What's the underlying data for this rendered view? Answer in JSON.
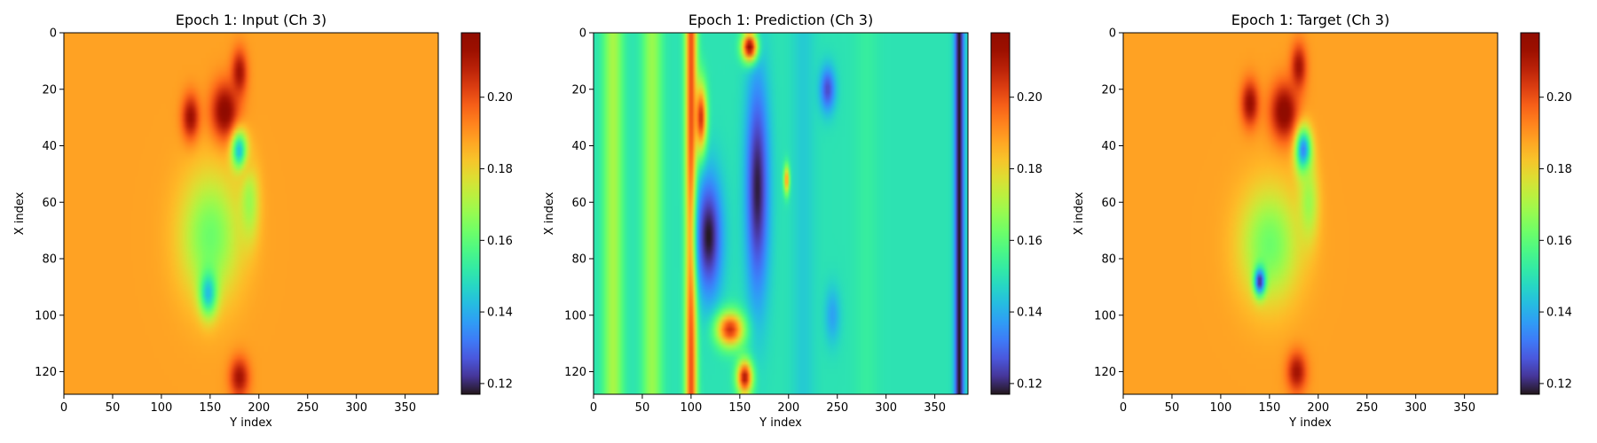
{
  "chart_data": [
    {
      "type": "heatmap",
      "title": "Epoch 1: Input (Ch 3)",
      "xlabel": "Y index",
      "ylabel": "X index",
      "xlim": [
        0,
        384
      ],
      "ylim": [
        128,
        0
      ],
      "xticks": [
        0,
        50,
        100,
        150,
        200,
        250,
        300,
        350
      ],
      "yticks": [
        0,
        20,
        40,
        60,
        80,
        100,
        120
      ],
      "colorbar": {
        "min": 0.117,
        "max": 0.218,
        "ticks": [
          0.12,
          0.14,
          0.16,
          0.18,
          0.2
        ],
        "tick_labels": [
          "0.12",
          "0.14",
          "0.16",
          "0.18",
          "0.20"
        ],
        "colormap": "turbo"
      },
      "background_value": 0.188,
      "features": [
        {
          "x": 165,
          "y": 28,
          "sx": 14,
          "sy": 10,
          "v": 0.218
        },
        {
          "x": 130,
          "y": 30,
          "sx": 9,
          "sy": 8,
          "v": 0.214
        },
        {
          "x": 180,
          "y": 14,
          "sx": 8,
          "sy": 8,
          "v": 0.212
        },
        {
          "x": 185,
          "y": 48,
          "sx": 8,
          "sy": 6,
          "v": 0.205
        },
        {
          "x": 180,
          "y": 122,
          "sx": 10,
          "sy": 7,
          "v": 0.212
        },
        {
          "x": 180,
          "y": 42,
          "sx": 8,
          "sy": 7,
          "v": 0.14
        },
        {
          "x": 150,
          "y": 72,
          "sx": 30,
          "sy": 22,
          "v": 0.162
        },
        {
          "x": 148,
          "y": 92,
          "sx": 9,
          "sy": 8,
          "v": 0.142
        },
        {
          "x": 190,
          "y": 60,
          "sx": 10,
          "sy": 14,
          "v": 0.168
        }
      ]
    },
    {
      "type": "heatmap",
      "title": "Epoch 1: Prediction (Ch 3)",
      "xlabel": "Y index",
      "ylabel": "X index",
      "xlim": [
        0,
        384
      ],
      "ylim": [
        128,
        0
      ],
      "xticks": [
        0,
        50,
        100,
        150,
        200,
        250,
        300,
        350
      ],
      "yticks": [
        0,
        20,
        40,
        60,
        80,
        100,
        120
      ],
      "colorbar": {
        "min": 0.117,
        "max": 0.218,
        "ticks": [
          0.12,
          0.14,
          0.16,
          0.18,
          0.2
        ],
        "tick_labels": [
          "0.12",
          "0.14",
          "0.16",
          "0.18",
          "0.20"
        ],
        "colormap": "turbo"
      },
      "background_value": 0.15,
      "stripes": [
        {
          "x": 20,
          "w": 10,
          "v": 0.17
        },
        {
          "x": 60,
          "w": 10,
          "v": 0.168
        },
        {
          "x": 100,
          "w": 6,
          "v": 0.2
        },
        {
          "x": 215,
          "w": 12,
          "v": 0.145
        },
        {
          "x": 280,
          "w": 12,
          "v": 0.153
        },
        {
          "x": 330,
          "w": 14,
          "v": 0.15
        },
        {
          "x": 375,
          "w": 5,
          "v": 0.117
        }
      ],
      "features": [
        {
          "x": 118,
          "y": 72,
          "sx": 14,
          "sy": 22,
          "v": 0.117
        },
        {
          "x": 168,
          "y": 55,
          "sx": 12,
          "sy": 40,
          "v": 0.118
        },
        {
          "x": 160,
          "y": 5,
          "sx": 8,
          "sy": 5,
          "v": 0.215
        },
        {
          "x": 110,
          "y": 30,
          "sx": 6,
          "sy": 12,
          "v": 0.205
        },
        {
          "x": 140,
          "y": 105,
          "sx": 14,
          "sy": 6,
          "v": 0.205
        },
        {
          "x": 155,
          "y": 122,
          "sx": 8,
          "sy": 6,
          "v": 0.21
        },
        {
          "x": 240,
          "y": 20,
          "sx": 8,
          "sy": 8,
          "v": 0.125
        },
        {
          "x": 245,
          "y": 100,
          "sx": 8,
          "sy": 10,
          "v": 0.138
        },
        {
          "x": 198,
          "y": 52,
          "sx": 3,
          "sy": 5,
          "v": 0.19
        }
      ]
    },
    {
      "type": "heatmap",
      "title": "Epoch 1: Target (Ch 3)",
      "xlabel": "Y index",
      "ylabel": "X index",
      "xlim": [
        0,
        384
      ],
      "ylim": [
        128,
        0
      ],
      "xticks": [
        0,
        50,
        100,
        150,
        200,
        250,
        300,
        350
      ],
      "yticks": [
        0,
        20,
        40,
        60,
        80,
        100,
        120
      ],
      "colorbar": {
        "min": 0.117,
        "max": 0.218,
        "ticks": [
          0.12,
          0.14,
          0.16,
          0.18,
          0.2
        ],
        "tick_labels": [
          "0.12",
          "0.14",
          "0.16",
          "0.18",
          "0.20"
        ],
        "colormap": "turbo"
      },
      "background_value": 0.188,
      "features": [
        {
          "x": 165,
          "y": 28,
          "sx": 14,
          "sy": 10,
          "v": 0.218
        },
        {
          "x": 130,
          "y": 25,
          "sx": 9,
          "sy": 8,
          "v": 0.214
        },
        {
          "x": 180,
          "y": 12,
          "sx": 8,
          "sy": 8,
          "v": 0.212
        },
        {
          "x": 178,
          "y": 120,
          "sx": 10,
          "sy": 7,
          "v": 0.212
        },
        {
          "x": 185,
          "y": 42,
          "sx": 8,
          "sy": 8,
          "v": 0.128
        },
        {
          "x": 150,
          "y": 75,
          "sx": 30,
          "sy": 20,
          "v": 0.162
        },
        {
          "x": 140,
          "y": 88,
          "sx": 6,
          "sy": 5,
          "v": 0.12
        },
        {
          "x": 190,
          "y": 60,
          "sx": 10,
          "sy": 14,
          "v": 0.168
        }
      ]
    }
  ]
}
